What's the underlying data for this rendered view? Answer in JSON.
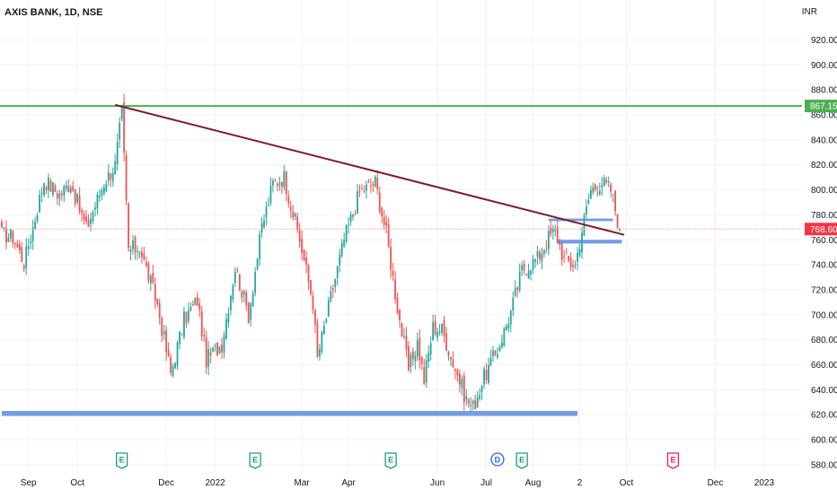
{
  "header": {
    "symbol": "AXIS BANK, 1D, NSE",
    "currency": "INR"
  },
  "colors": {
    "up": "#26a69a",
    "down": "#ef5350",
    "grid": "#f0f3fa",
    "axis_text": "#131722",
    "green_line": "#4caf50",
    "trendline": "#7b1c2b",
    "zone": "#5b8dde",
    "last_price": "#f23645",
    "event_earnings": "#1b9e77",
    "event_earnings_future": "#e91e63",
    "event_dividend": "#2962ff"
  },
  "chart_data": {
    "type": "candlestick",
    "title": "AXIS BANK, 1D, NSE",
    "ylabel": "INR",
    "ylim": [
      574,
      932
    ],
    "grid": true,
    "y_ticks": [
      580,
      600,
      620,
      640,
      660,
      680,
      700,
      720,
      740,
      760,
      780,
      800,
      820,
      840,
      860,
      880,
      900,
      920
    ],
    "y_tick_labels": [
      "580.00",
      "600.00",
      "620.00",
      "640.00",
      "660.00",
      "680.00",
      "700.00",
      "720.00",
      "740.00",
      "760.00",
      "780.00",
      "800.00",
      "820.00",
      "840.00",
      "860.00",
      "880.00",
      "900.00",
      "920.00"
    ],
    "x_labels": [
      {
        "label": "Sep",
        "index": 12
      },
      {
        "label": "Oct",
        "index": 34
      },
      {
        "label": "Dec",
        "index": 74
      },
      {
        "label": "2022",
        "index": 96
      },
      {
        "label": "Mar",
        "index": 135
      },
      {
        "label": "Apr",
        "index": 156
      },
      {
        "label": "Jun",
        "index": 196
      },
      {
        "label": "Jul",
        "index": 218
      },
      {
        "label": "Aug",
        "index": 239
      },
      {
        "label": "2",
        "index": 260
      },
      {
        "label": "Oct",
        "index": 281
      },
      {
        "label": "Dec",
        "index": 321
      },
      {
        "label": "2023",
        "index": 343
      }
    ],
    "price_levels": [
      {
        "name": "resistance",
        "value": 867.15,
        "label": "867.15"
      },
      {
        "name": "last_price",
        "value": 768.6,
        "label": "768.60"
      }
    ],
    "trendline": {
      "from": {
        "index": 51,
        "price": 868
      },
      "to": {
        "index": 280,
        "price": 764
      }
    },
    "zones": [
      {
        "name": "support-zone",
        "from_index": 0,
        "to_index": 259,
        "low": 619,
        "high": 623
      },
      {
        "name": "upper-zone",
        "from_index": 246,
        "to_index": 275,
        "low": 775,
        "high": 777
      },
      {
        "name": "lower-zone",
        "from_index": 250,
        "to_index": 279,
        "low": 757,
        "high": 760
      }
    ],
    "events": [
      {
        "type": "E",
        "index": 54,
        "label": "E",
        "future": false
      },
      {
        "type": "E",
        "index": 114,
        "label": "E",
        "future": false
      },
      {
        "type": "E",
        "index": 175,
        "label": "E",
        "future": false
      },
      {
        "type": "D",
        "index": 223,
        "label": "D",
        "future": false
      },
      {
        "type": "E",
        "index": 234,
        "label": "E",
        "future": false
      },
      {
        "type": "E",
        "index": 302,
        "label": "E",
        "future": true
      }
    ],
    "anchors": [
      {
        "index": 0,
        "price": 765
      },
      {
        "index": 5,
        "price": 762
      },
      {
        "index": 10,
        "price": 742
      },
      {
        "index": 14,
        "price": 770
      },
      {
        "index": 19,
        "price": 808
      },
      {
        "index": 26,
        "price": 796
      },
      {
        "index": 31,
        "price": 806
      },
      {
        "index": 38,
        "price": 769
      },
      {
        "index": 46,
        "price": 806
      },
      {
        "index": 51,
        "price": 820
      },
      {
        "index": 54,
        "price": 862
      },
      {
        "index": 57,
        "price": 752
      },
      {
        "index": 62,
        "price": 754
      },
      {
        "index": 70,
        "price": 708
      },
      {
        "index": 76,
        "price": 653
      },
      {
        "index": 82,
        "price": 696
      },
      {
        "index": 88,
        "price": 712
      },
      {
        "index": 92,
        "price": 664
      },
      {
        "index": 99,
        "price": 677
      },
      {
        "index": 105,
        "price": 738
      },
      {
        "index": 111,
        "price": 700
      },
      {
        "index": 117,
        "price": 770
      },
      {
        "index": 122,
        "price": 805
      },
      {
        "index": 127,
        "price": 810
      },
      {
        "index": 134,
        "price": 760
      },
      {
        "index": 140,
        "price": 710
      },
      {
        "index": 142,
        "price": 665
      },
      {
        "index": 148,
        "price": 714
      },
      {
        "index": 154,
        "price": 760
      },
      {
        "index": 161,
        "price": 798
      },
      {
        "index": 168,
        "price": 806
      },
      {
        "index": 173,
        "price": 765
      },
      {
        "index": 178,
        "price": 706
      },
      {
        "index": 183,
        "price": 656
      },
      {
        "index": 187,
        "price": 678
      },
      {
        "index": 190,
        "price": 648
      },
      {
        "index": 194,
        "price": 690
      },
      {
        "index": 198,
        "price": 688
      },
      {
        "index": 203,
        "price": 662
      },
      {
        "index": 209,
        "price": 632
      },
      {
        "index": 212,
        "price": 626
      },
      {
        "index": 217,
        "price": 650
      },
      {
        "index": 223,
        "price": 672
      },
      {
        "index": 229,
        "price": 702
      },
      {
        "index": 234,
        "price": 736
      },
      {
        "index": 241,
        "price": 745
      },
      {
        "index": 246,
        "price": 762
      },
      {
        "index": 249,
        "price": 767
      },
      {
        "index": 253,
        "price": 744
      },
      {
        "index": 258,
        "price": 740
      },
      {
        "index": 261,
        "price": 768
      },
      {
        "index": 265,
        "price": 800
      },
      {
        "index": 270,
        "price": 806
      },
      {
        "index": 274,
        "price": 800
      },
      {
        "index": 278,
        "price": 768.6
      }
    ],
    "candle_count": 279,
    "seed": 17
  }
}
